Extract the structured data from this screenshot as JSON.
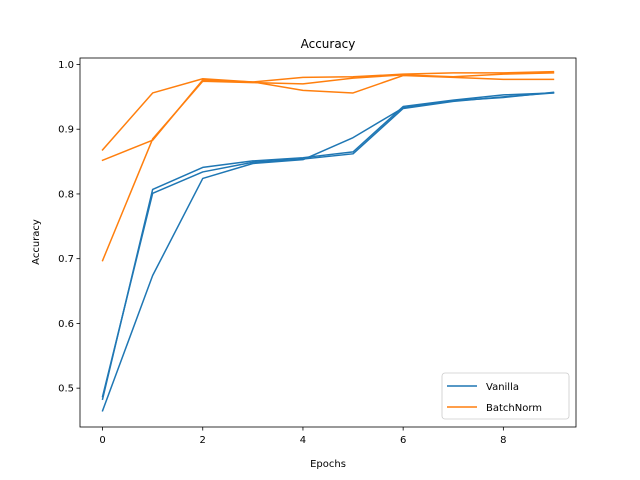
{
  "chart_data": {
    "type": "line",
    "title": "Accuracy",
    "xlabel": "Epochs",
    "ylabel": "Accuracy",
    "xlim": [
      -0.45,
      9.45
    ],
    "ylim": [
      0.44,
      1.01
    ],
    "xticks": [
      0,
      2,
      4,
      6,
      8
    ],
    "yticks": [
      0.5,
      0.6,
      0.7,
      0.8,
      0.9,
      1.0
    ],
    "xtick_labels": [
      "0",
      "2",
      "4",
      "6",
      "8"
    ],
    "ytick_labels": [
      "0.5",
      "0.6",
      "0.7",
      "0.8",
      "0.9",
      "1.0"
    ],
    "grid": false,
    "legend_position": "lower-right",
    "legend": [
      {
        "label": "Vanilla",
        "color": "#1f77b4"
      },
      {
        "label": "BatchNorm",
        "color": "#ff7f0e"
      }
    ],
    "series": [
      {
        "group": "Vanilla",
        "color": "#1f77b4",
        "x": [
          0,
          1,
          2,
          3,
          4,
          5,
          6,
          7,
          8,
          9
        ],
        "y": [
          0.483,
          0.807,
          0.841,
          0.851,
          0.856,
          0.865,
          0.935,
          0.945,
          0.953,
          0.956
        ]
      },
      {
        "group": "Vanilla",
        "color": "#1f77b4",
        "x": [
          0,
          1,
          2,
          3,
          4,
          5,
          6,
          7,
          8,
          9
        ],
        "y": [
          0.487,
          0.801,
          0.834,
          0.849,
          0.854,
          0.862,
          0.932,
          0.943,
          0.95,
          0.956
        ]
      },
      {
        "group": "Vanilla",
        "color": "#1f77b4",
        "x": [
          0,
          1,
          2,
          3,
          4,
          5,
          6,
          7,
          8,
          9
        ],
        "y": [
          0.465,
          0.674,
          0.824,
          0.847,
          0.853,
          0.887,
          0.933,
          0.944,
          0.949,
          0.957
        ]
      },
      {
        "group": "BatchNorm",
        "color": "#ff7f0e",
        "x": [
          0,
          1,
          2,
          3,
          4,
          5,
          6,
          7,
          8,
          9
        ],
        "y": [
          0.868,
          0.956,
          0.978,
          0.973,
          0.98,
          0.981,
          0.985,
          0.987,
          0.987,
          0.989
        ]
      },
      {
        "group": "BatchNorm",
        "color": "#ff7f0e",
        "x": [
          0,
          1,
          2,
          3,
          4,
          5,
          6,
          7,
          8,
          9
        ],
        "y": [
          0.852,
          0.883,
          0.976,
          0.973,
          0.96,
          0.956,
          0.983,
          0.98,
          0.977,
          0.977
        ]
      },
      {
        "group": "BatchNorm",
        "color": "#ff7f0e",
        "x": [
          0,
          1,
          2,
          3,
          4,
          5,
          6,
          7,
          8,
          9
        ],
        "y": [
          0.697,
          0.885,
          0.974,
          0.972,
          0.97,
          0.979,
          0.984,
          0.981,
          0.985,
          0.987
        ]
      }
    ]
  }
}
